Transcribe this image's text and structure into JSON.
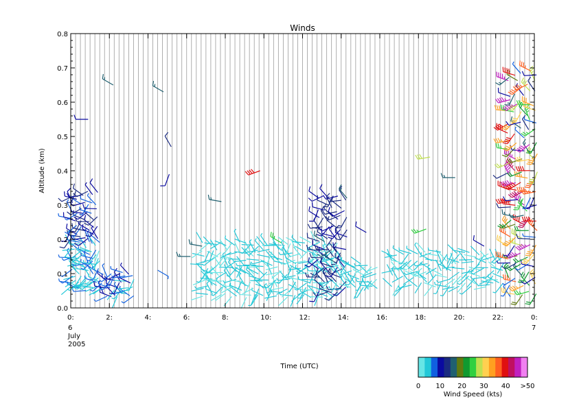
{
  "chart_data": {
    "type": "wind-barb",
    "title": "Winds",
    "xlabel": "Time (UTC)",
    "ylabel": "Altitude (km)",
    "xlim": [
      0,
      24
    ],
    "ylim": [
      0,
      0.8
    ],
    "grid": "vertical lines every ~15 minutes",
    "x_ticks": [
      {
        "value": 0,
        "label": "0:"
      },
      {
        "value": 2,
        "label": "2:"
      },
      {
        "value": 4,
        "label": "4:"
      },
      {
        "value": 6,
        "label": "6:"
      },
      {
        "value": 8,
        "label": "8:"
      },
      {
        "value": 10,
        "label": "10:"
      },
      {
        "value": 12,
        "label": "12:"
      },
      {
        "value": 14,
        "label": "14:"
      },
      {
        "value": 16,
        "label": "16:"
      },
      {
        "value": 18,
        "label": "18:"
      },
      {
        "value": 20,
        "label": "20:"
      },
      {
        "value": 22,
        "label": "22:"
      },
      {
        "value": 24,
        "label": "0:"
      }
    ],
    "x_date_labels": {
      "start": [
        "6",
        "July",
        "2005"
      ],
      "end": [
        "7"
      ]
    },
    "y_ticks": [
      {
        "value": 0.0,
        "label": "0.0"
      },
      {
        "value": 0.1,
        "label": "0.1"
      },
      {
        "value": 0.2,
        "label": "0.2"
      },
      {
        "value": 0.3,
        "label": "0.3"
      },
      {
        "value": 0.4,
        "label": "0.4"
      },
      {
        "value": 0.5,
        "label": "0.5"
      },
      {
        "value": 0.6,
        "label": "0.6"
      },
      {
        "value": 0.7,
        "label": "0.7"
      },
      {
        "value": 0.8,
        "label": "0.8"
      }
    ],
    "colorbar": {
      "title": "Wind Speed (kts)",
      "colors": [
        "#66e6e6",
        "#22c8d8",
        "#1060e0",
        "#0a0aa0",
        "#1a2a80",
        "#206070",
        "#607a10",
        "#109a30",
        "#30d040",
        "#c0e050",
        "#ffd050",
        "#ffa020",
        "#ff6020",
        "#e01010",
        "#c01060",
        "#c020c0",
        "#f080f0"
      ],
      "tick_labels": [
        "0",
        "10",
        "20",
        "30",
        "40",
        ">50"
      ]
    },
    "barb_groups": [
      {
        "t0": 0.0,
        "t1": 1.6,
        "h0": 0.05,
        "h1": 0.2,
        "speeds": [
          3,
          8
        ],
        "rows": 8,
        "cols": 9
      },
      {
        "t0": 0.0,
        "t1": 1.5,
        "h0": 0.2,
        "h1": 0.35,
        "speeds": [
          8,
          14
        ],
        "rows": 6,
        "cols": 7
      },
      {
        "t0": 1.6,
        "t1": 3.4,
        "h0": 0.03,
        "h1": 0.11,
        "speeds": [
          2,
          12
        ],
        "rows": 4,
        "cols": 9
      },
      {
        "t0": 6.8,
        "t1": 14.0,
        "h0": 0.03,
        "h1": 0.2,
        "speeds": [
          2,
          6
        ],
        "rows": 8,
        "cols": 30
      },
      {
        "t0": 12.8,
        "t1": 14.4,
        "h0": 0.04,
        "h1": 0.34,
        "speeds": [
          10,
          16
        ],
        "rows": 10,
        "cols": 7
      },
      {
        "t0": 14.0,
        "t1": 16.0,
        "h0": 0.05,
        "h1": 0.14,
        "speeds": [
          2,
          6
        ],
        "rows": 4,
        "cols": 9
      },
      {
        "t0": 16.6,
        "t1": 22.6,
        "h0": 0.06,
        "h1": 0.17,
        "speeds": [
          2,
          6
        ],
        "rows": 5,
        "cols": 24
      },
      {
        "t0": 22.6,
        "t1": 24.3,
        "h0": 0.03,
        "h1": 0.7,
        "speeds": [
          6,
          50
        ],
        "rows": 24,
        "cols": 5
      }
    ],
    "isolated_barbs": [
      {
        "t": 0.9,
        "h": 0.55,
        "speed": 12,
        "dir": 270
      },
      {
        "t": 2.2,
        "h": 0.65,
        "speed": 18,
        "dir": 300
      },
      {
        "t": 4.8,
        "h": 0.63,
        "speed": 16,
        "dir": 300
      },
      {
        "t": 5.2,
        "h": 0.47,
        "speed": 14,
        "dir": 330
      },
      {
        "t": 5.1,
        "h": 0.39,
        "speed": 10,
        "dir": 200
      },
      {
        "t": 4.5,
        "h": 0.11,
        "speed": 8,
        "dir": 120
      },
      {
        "t": 6.2,
        "h": 0.15,
        "speed": 18,
        "dir": 270
      },
      {
        "t": 7.8,
        "h": 0.31,
        "speed": 16,
        "dir": 280
      },
      {
        "t": 9.8,
        "h": 0.4,
        "speed": 42,
        "dir": 250
      },
      {
        "t": 6.8,
        "h": 0.18,
        "speed": 16,
        "dir": 280
      },
      {
        "t": 10.9,
        "h": 0.19,
        "speed": 28,
        "dir": 300
      },
      {
        "t": 14.3,
        "h": 0.32,
        "speed": 16,
        "dir": 320
      },
      {
        "t": 15.3,
        "h": 0.22,
        "speed": 12,
        "dir": 300
      },
      {
        "t": 18.6,
        "h": 0.44,
        "speed": 30,
        "dir": 260
      },
      {
        "t": 18.4,
        "h": 0.23,
        "speed": 28,
        "dir": 250
      },
      {
        "t": 19.9,
        "h": 0.38,
        "speed": 18,
        "dir": 270
      },
      {
        "t": 21.4,
        "h": 0.18,
        "speed": 12,
        "dir": 300
      }
    ]
  }
}
